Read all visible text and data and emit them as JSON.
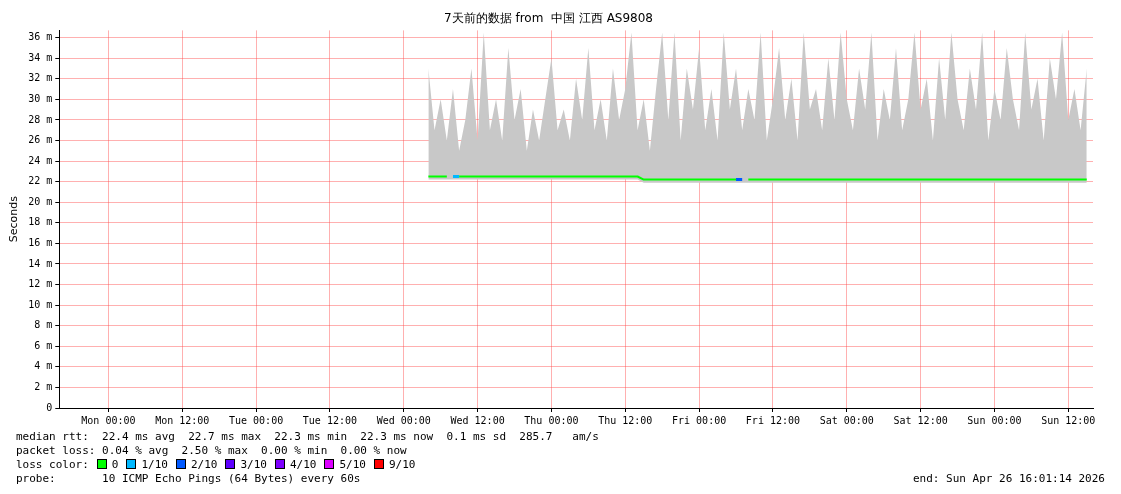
{
  "chart_data": {
    "type": "line",
    "title": "7天前的数据 from  中国 江西 AS9808",
    "ylabel": "Seconds",
    "xlim": [
      "2026-04-19T16:01",
      "2026-04-26T16:01"
    ],
    "xticks": [
      {
        "value": "2026-04-20T00:00",
        "label": "Mon 00:00"
      },
      {
        "value": "2026-04-20T12:00",
        "label": "Mon 12:00"
      },
      {
        "value": "2026-04-21T00:00",
        "label": "Tue 00:00"
      },
      {
        "value": "2026-04-21T12:00",
        "label": "Tue 12:00"
      },
      {
        "value": "2026-04-22T00:00",
        "label": "Wed 00:00"
      },
      {
        "value": "2026-04-22T12:00",
        "label": "Wed 12:00"
      },
      {
        "value": "2026-04-23T00:00",
        "label": "Thu 00:00"
      },
      {
        "value": "2026-04-23T12:00",
        "label": "Thu 12:00"
      },
      {
        "value": "2026-04-24T00:00",
        "label": "Fri 00:00"
      },
      {
        "value": "2026-04-24T12:00",
        "label": "Fri 12:00"
      },
      {
        "value": "2026-04-25T00:00",
        "label": "Sat 00:00"
      },
      {
        "value": "2026-04-25T12:00",
        "label": "Sat 12:00"
      },
      {
        "value": "2026-04-26T00:00",
        "label": "Sun 00:00"
      },
      {
        "value": "2026-04-26T12:00",
        "label": "Sun 12:00"
      }
    ],
    "ylim": [
      0,
      36.7
    ],
    "yticks": [
      0,
      {
        "value": 2,
        "label": "2 m"
      },
      {
        "value": 4,
        "label": "4 m"
      },
      {
        "value": 6,
        "label": "6 m"
      },
      {
        "value": 8,
        "label": "8 m"
      },
      {
        "value": 10,
        "label": "10 m"
      },
      {
        "value": 12,
        "label": "12 m"
      },
      {
        "value": 14,
        "label": "14 m"
      },
      {
        "value": 16,
        "label": "16 m"
      },
      {
        "value": 18,
        "label": "18 m"
      },
      {
        "value": 20,
        "label": "20 m"
      },
      {
        "value": 22,
        "label": "22 m"
      },
      {
        "value": 24,
        "label": "24 m"
      },
      {
        "value": 26,
        "label": "26 m"
      },
      {
        "value": 28,
        "label": "28 m"
      },
      {
        "value": 30,
        "label": "30 m"
      },
      {
        "value": 32,
        "label": "32 m"
      },
      {
        "value": 34,
        "label": "34 m"
      },
      {
        "value": 36,
        "label": "36 m"
      }
    ],
    "grid": true,
    "legend": "bottom",
    "marker": "none",
    "line_style": "solid",
    "x": [
      "2026-04-22T04:00",
      "2026-04-22T05:00",
      "2026-04-22T06:00",
      "2026-04-22T07:00",
      "2026-04-22T08:00",
      "2026-04-22T09:00",
      "2026-04-22T10:00",
      "2026-04-22T11:00",
      "2026-04-22T12:00",
      "2026-04-22T13:00",
      "2026-04-22T14:00",
      "2026-04-22T15:00",
      "2026-04-22T16:00",
      "2026-04-22T17:00",
      "2026-04-22T18:00",
      "2026-04-22T19:00",
      "2026-04-22T20:00",
      "2026-04-22T21:00",
      "2026-04-22T22:00",
      "2026-04-22T23:00",
      "2026-04-23T00:00",
      "2026-04-23T01:00",
      "2026-04-23T02:00",
      "2026-04-23T03:00",
      "2026-04-23T04:00",
      "2026-04-23T05:00",
      "2026-04-23T06:00",
      "2026-04-23T07:00",
      "2026-04-23T08:00",
      "2026-04-23T09:00",
      "2026-04-23T10:00",
      "2026-04-23T11:00",
      "2026-04-23T12:00",
      "2026-04-23T13:00",
      "2026-04-23T14:00",
      "2026-04-23T15:00",
      "2026-04-23T16:00",
      "2026-04-23T17:00",
      "2026-04-23T18:00",
      "2026-04-23T19:00",
      "2026-04-23T20:00",
      "2026-04-23T21:00",
      "2026-04-23T22:00",
      "2026-04-23T23:00",
      "2026-04-24T00:00",
      "2026-04-24T01:00",
      "2026-04-24T02:00",
      "2026-04-24T03:00",
      "2026-04-24T04:00",
      "2026-04-24T05:00",
      "2026-04-24T06:00",
      "2026-04-24T07:00",
      "2026-04-24T08:00",
      "2026-04-24T09:00",
      "2026-04-24T10:00",
      "2026-04-24T11:00",
      "2026-04-24T12:00",
      "2026-04-24T13:00",
      "2026-04-24T14:00",
      "2026-04-24T15:00",
      "2026-04-24T16:00",
      "2026-04-24T17:00",
      "2026-04-24T18:00",
      "2026-04-24T19:00",
      "2026-04-24T20:00",
      "2026-04-24T21:00",
      "2026-04-24T22:00",
      "2026-04-24T23:00",
      "2026-04-25T00:00",
      "2026-04-25T01:00",
      "2026-04-25T02:00",
      "2026-04-25T03:00",
      "2026-04-25T04:00",
      "2026-04-25T05:00",
      "2026-04-25T06:00",
      "2026-04-25T07:00",
      "2026-04-25T08:00",
      "2026-04-25T09:00",
      "2026-04-25T10:00",
      "2026-04-25T11:00",
      "2026-04-25T12:00",
      "2026-04-25T13:00",
      "2026-04-25T14:00",
      "2026-04-25T15:00",
      "2026-04-25T16:00",
      "2026-04-25T17:00",
      "2026-04-25T18:00",
      "2026-04-25T19:00",
      "2026-04-25T20:00",
      "2026-04-25T21:00",
      "2026-04-25T22:00",
      "2026-04-25T23:00",
      "2026-04-26T00:00",
      "2026-04-26T01:00",
      "2026-04-26T02:00",
      "2026-04-26T03:00",
      "2026-04-26T04:00",
      "2026-04-26T05:00",
      "2026-04-26T06:00",
      "2026-04-26T07:00",
      "2026-04-26T08:00",
      "2026-04-26T09:00",
      "2026-04-26T10:00",
      "2026-04-26T11:00",
      "2026-04-26T12:00",
      "2026-04-26T13:00",
      "2026-04-26T14:00",
      "2026-04-26T15:00"
    ],
    "series": [
      {
        "name": "0",
        "color": "#00ff00",
        "values": [
          22.5,
          22.5,
          22.5,
          22.5,
          null,
          22.5,
          22.5,
          22.5,
          22.5,
          22.5,
          22.5,
          22.5,
          22.5,
          22.5,
          22.5,
          22.5,
          22.5,
          22.5,
          22.5,
          22.5,
          22.5,
          22.5,
          22.5,
          22.5,
          22.5,
          22.5,
          22.5,
          22.5,
          22.5,
          22.5,
          22.5,
          22.5,
          22.5,
          22.5,
          22.5,
          22.2,
          22.2,
          22.2,
          22.2,
          22.2,
          22.2,
          22.2,
          22.2,
          22.2,
          22.2,
          22.2,
          22.2,
          22.2,
          22.2,
          22.2,
          22.2,
          null,
          22.2,
          22.2,
          22.2,
          22.2,
          22.2,
          22.2,
          22.2,
          22.2,
          22.2,
          22.2,
          22.2,
          22.2,
          22.2,
          22.2,
          22.2,
          22.2,
          22.2,
          22.2,
          22.2,
          22.2,
          22.2,
          22.2,
          22.2,
          22.2,
          22.2,
          22.2,
          22.2,
          22.2,
          22.2,
          22.2,
          22.2,
          22.2,
          22.2,
          22.2,
          22.2,
          22.2,
          22.2,
          22.2,
          22.2,
          22.2,
          22.2,
          22.2,
          22.2,
          22.2,
          22.2,
          22.2,
          22.2,
          22.2,
          22.2,
          22.2,
          22.2,
          22.2,
          22.2,
          22.2,
          22.2,
          22.2
        ],
        "lower": [
          22.2,
          22.2,
          22.2,
          22.2,
          22.2,
          22.2,
          22.2,
          22.2,
          22.2,
          22.2,
          22.2,
          22.2,
          22.2,
          22.2,
          22.2,
          22.2,
          22.2,
          22.2,
          22.2,
          22.2,
          22.2,
          22.2,
          22.2,
          22.2,
          22.2,
          22.2,
          22.2,
          22.2,
          22.2,
          22.2,
          22.2,
          22.2,
          22.2,
          22.2,
          22.2,
          21.9,
          21.9,
          21.9,
          21.9,
          21.9,
          21.9,
          21.9,
          21.9,
          21.9,
          21.9,
          21.9,
          21.9,
          21.9,
          21.9,
          21.9,
          21.9,
          21.9,
          21.9,
          21.9,
          21.9,
          21.9,
          21.9,
          21.9,
          21.9,
          21.9,
          21.9,
          21.9,
          21.9,
          21.9,
          21.9,
          21.9,
          21.9,
          21.9,
          21.9,
          21.9,
          21.9,
          21.9,
          21.9,
          21.9,
          21.9,
          21.9,
          21.9,
          21.9,
          21.9,
          21.9,
          21.9,
          21.9,
          21.9,
          21.9,
          21.9,
          21.9,
          21.9,
          21.9,
          21.9,
          21.9,
          21.9,
          21.9,
          21.9,
          21.9,
          21.9,
          21.9,
          21.9,
          21.9,
          21.9,
          21.9,
          21.9,
          21.9,
          21.9,
          21.9,
          21.9,
          21.9,
          21.9,
          21.9
        ],
        "upper": [
          33,
          27,
          30,
          26,
          31,
          25,
          28,
          33,
          26,
          36.5,
          27,
          30,
          26,
          35,
          28,
          31,
          25,
          29,
          26,
          30,
          34,
          27,
          29,
          26,
          32,
          28,
          35,
          27,
          30,
          26,
          33,
          28,
          31,
          36.5,
          27,
          30,
          25,
          31,
          36.5,
          28,
          36.5,
          26,
          33,
          29,
          35,
          27,
          31,
          26,
          36.5,
          29,
          33,
          27,
          31,
          28,
          36.5,
          26,
          30,
          35,
          28,
          32,
          26,
          36.5,
          29,
          31,
          27,
          34,
          28,
          36.5,
          30,
          27,
          33,
          29,
          36.5,
          26,
          31,
          28,
          35,
          27,
          30,
          36.5,
          29,
          32,
          26,
          34,
          28,
          36.5,
          30,
          27,
          33,
          29,
          36.5,
          26,
          31,
          28,
          35,
          30,
          27,
          36.5,
          29,
          32,
          26,
          34,
          30,
          36.5,
          28,
          31,
          27,
          33
        ]
      },
      {
        "name": "1/10",
        "color": "#00b8ff",
        "x": [
          "2026-04-22T08:00",
          "2026-04-22T09:00"
        ],
        "values": [
          22.5,
          22.5
        ]
      },
      {
        "name": "2/10",
        "color": "#0059ff",
        "x": [
          "2026-04-24T06:00",
          "2026-04-24T07:00"
        ],
        "values": [
          22.2,
          22.2
        ]
      },
      {
        "name": "3/10",
        "color": "#5e00ff",
        "values": [
          null,
          null,
          null,
          null,
          null,
          null,
          null,
          null,
          null,
          null,
          null,
          null,
          null,
          null,
          null,
          null,
          null,
          null,
          null,
          null,
          null,
          null,
          null,
          null,
          null,
          null,
          null,
          null,
          null,
          null,
          null,
          null,
          null,
          null,
          null,
          null,
          null,
          null,
          null,
          null,
          null,
          null,
          null,
          null,
          null,
          null,
          null,
          null,
          null,
          null,
          null,
          null,
          null,
          null,
          null,
          null,
          null,
          null,
          null,
          null,
          null,
          null,
          null,
          null,
          null,
          null,
          null,
          null,
          null,
          null,
          null,
          null,
          null,
          null,
          null,
          null,
          null,
          null,
          null,
          null,
          null,
          null,
          null,
          null,
          null,
          null,
          null,
          null,
          null,
          null,
          null,
          null,
          null,
          null,
          null,
          null,
          null,
          null,
          null,
          null,
          null,
          null,
          null,
          null,
          null,
          null,
          null,
          null
        ]
      },
      {
        "name": "4/10",
        "color": "#7e00ff",
        "values": [
          null,
          null,
          null,
          null,
          null,
          null,
          null,
          null,
          null,
          null,
          null,
          null,
          null,
          null,
          null,
          null,
          null,
          null,
          null,
          null,
          null,
          null,
          null,
          null,
          null,
          null,
          null,
          null,
          null,
          null,
          null,
          null,
          null,
          null,
          null,
          null,
          null,
          null,
          null,
          null,
          null,
          null,
          null,
          null,
          null,
          null,
          null,
          null,
          null,
          null,
          null,
          null,
          null,
          null,
          null,
          null,
          null,
          null,
          null,
          null,
          null,
          null,
          null,
          null,
          null,
          null,
          null,
          null,
          null,
          null,
          null,
          null,
          null,
          null,
          null,
          null,
          null,
          null,
          null,
          null,
          null,
          null,
          null,
          null,
          null,
          null,
          null,
          null,
          null,
          null,
          null,
          null,
          null,
          null,
          null,
          null,
          null,
          null,
          null,
          null,
          null,
          null,
          null,
          null,
          null,
          null,
          null,
          null
        ]
      },
      {
        "name": "5/10",
        "color": "#dd00ff",
        "values": [
          null,
          null,
          null,
          null,
          null,
          null,
          null,
          null,
          null,
          null,
          null,
          null,
          null,
          null,
          null,
          null,
          null,
          null,
          null,
          null,
          null,
          null,
          null,
          null,
          null,
          null,
          null,
          null,
          null,
          null,
          null,
          null,
          null,
          null,
          null,
          null,
          null,
          null,
          null,
          null,
          null,
          null,
          null,
          null,
          null,
          null,
          null,
          null,
          null,
          null,
          null,
          null,
          null,
          null,
          null,
          null,
          null,
          null,
          null,
          null,
          null,
          null,
          null,
          null,
          null,
          null,
          null,
          null,
          null,
          null,
          null,
          null,
          null,
          null,
          null,
          null,
          null,
          null,
          null,
          null,
          null,
          null,
          null,
          null,
          null,
          null,
          null,
          null,
          null,
          null,
          null,
          null,
          null,
          null,
          null,
          null,
          null,
          null,
          null,
          null,
          null,
          null,
          null,
          null,
          null,
          null,
          null,
          null
        ]
      },
      {
        "name": "9/10",
        "color": "#ff0000",
        "values": [
          null,
          null,
          null,
          null,
          null,
          null,
          null,
          null,
          null,
          null,
          null,
          null,
          null,
          null,
          null,
          null,
          null,
          null,
          null,
          null,
          null,
          null,
          null,
          null,
          null,
          null,
          null,
          null,
          null,
          null,
          null,
          null,
          null,
          null,
          null,
          null,
          null,
          null,
          null,
          null,
          null,
          null,
          null,
          null,
          null,
          null,
          null,
          null,
          null,
          null,
          null,
          null,
          null,
          null,
          null,
          null,
          null,
          null,
          null,
          null,
          null,
          null,
          null,
          null,
          null,
          null,
          null,
          null,
          null,
          null,
          null,
          null,
          null,
          null,
          null,
          null,
          null,
          null,
          null,
          null,
          null,
          null,
          null,
          null,
          null,
          null,
          null,
          null,
          null,
          null,
          null,
          null,
          null,
          null,
          null,
          null,
          null,
          null,
          null,
          null,
          null,
          null,
          null,
          null,
          null,
          null,
          null,
          null
        ]
      }
    ],
    "annotations": [
      "median rtt:  22.4 ms avg  22.7 ms max  22.3 ms min  22.3 ms now  0.1 ms sd  285.7   am/s",
      "packet loss: 0.04 % avg  2.50 % max  0.00 % min  0.00 % now",
      "loss color:",
      "probe:       10 ICMP Echo Pings (64 Bytes) every 60s",
      "end: Sun Apr 26 16:01:14 2026"
    ]
  }
}
